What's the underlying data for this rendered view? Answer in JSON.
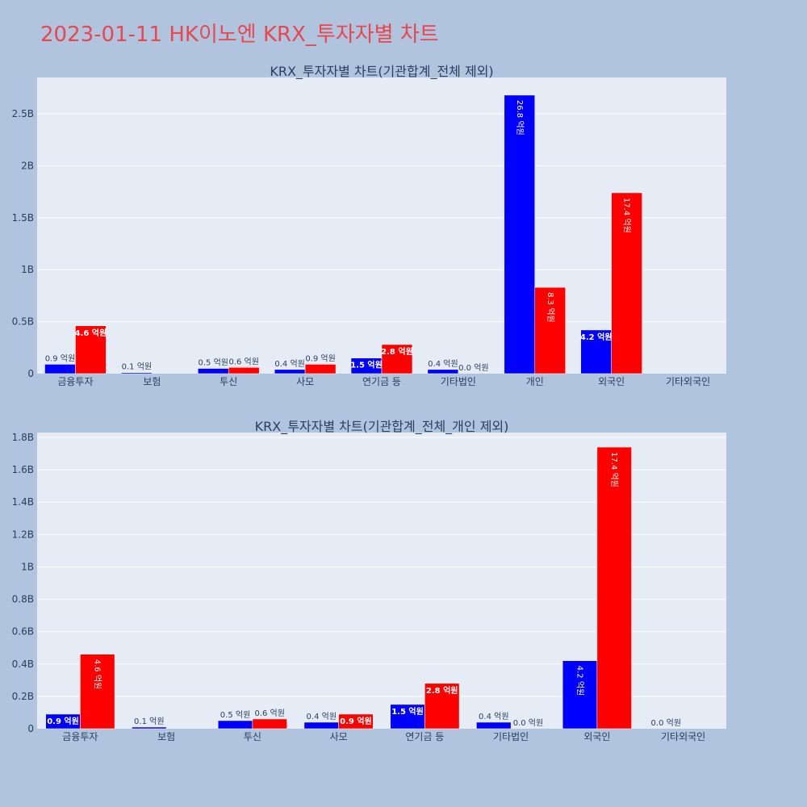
{
  "page": {
    "title": "2023-01-11 HK이노엔 KRX_투자자별 차트",
    "title_color": "#e8474f",
    "background": "#b0c4de",
    "plot_background": "#e5ecf6",
    "buy_color": "#0000ff",
    "sell_color": "#ff0000"
  },
  "chart_data": [
    {
      "type": "bar",
      "title": "KRX_투자자별 차트(기관합계_전체 제외)",
      "categories": [
        "금융투자",
        "보험",
        "투신",
        "사모",
        "연기금 등",
        "기타법인",
        "개인",
        "외국인",
        "기타외국인"
      ],
      "series": [
        {
          "color": "#0000ff",
          "values": [
            90000000,
            10000000,
            50000000,
            40000000,
            150000000,
            40000000,
            2680000000,
            420000000,
            0
          ],
          "labels": [
            "0.9 억원",
            "0.1 억원",
            "0.5 억원",
            "0.4 억원",
            "1.5 억원",
            "0.4 억원",
            "26.8 억원",
            "4.2 억원",
            ""
          ]
        },
        {
          "color": "#ff0000",
          "values": [
            460000000,
            0,
            60000000,
            90000000,
            280000000,
            0,
            830000000,
            1740000000,
            0
          ],
          "labels": [
            "4.6 억원",
            "",
            "0.6 억원",
            "0.9 억원",
            "2.8 억원",
            "0.0 억원",
            "8.3 억원",
            "17.4 억원",
            ""
          ]
        }
      ],
      "ylim": [
        0,
        2850000000
      ],
      "yticks": [
        0,
        500000000,
        1000000000,
        1500000000,
        2000000000,
        2500000000
      ],
      "ytick_labels": [
        "0",
        "0.5B",
        "1B",
        "1.5B",
        "2B",
        "2.5B"
      ],
      "grid": true
    },
    {
      "type": "bar",
      "title": "KRX_투자자별 차트(기관합계_전체_개인 제외)",
      "categories": [
        "금융투자",
        "보험",
        "투신",
        "사모",
        "연기금 등",
        "기타법인",
        "외국인",
        "기타외국인"
      ],
      "series": [
        {
          "color": "#0000ff",
          "values": [
            90000000,
            10000000,
            50000000,
            40000000,
            150000000,
            40000000,
            420000000,
            0
          ],
          "labels": [
            "0.9 억원",
            "0.1 억원",
            "0.5 억원",
            "0.4 억원",
            "1.5 억원",
            "0.4 억원",
            "4.2 억원",
            "0.0 억원"
          ]
        },
        {
          "color": "#ff0000",
          "values": [
            460000000,
            0,
            60000000,
            90000000,
            280000000,
            0,
            1740000000,
            0
          ],
          "labels": [
            "4.6 억원",
            "",
            "0.6 억원",
            "0.9 억원",
            "2.8 억원",
            "0.0 억원",
            "17.4 억원",
            ""
          ]
        }
      ],
      "ylim": [
        0,
        1830000000
      ],
      "yticks": [
        0,
        200000000,
        400000000,
        600000000,
        800000000,
        1000000000,
        1200000000,
        1400000000,
        1600000000,
        1800000000
      ],
      "ytick_labels": [
        "0",
        "0.2B",
        "0.4B",
        "0.6B",
        "0.8B",
        "1B",
        "1.2B",
        "1.4B",
        "1.6B",
        "1.8B"
      ],
      "grid": true
    }
  ]
}
